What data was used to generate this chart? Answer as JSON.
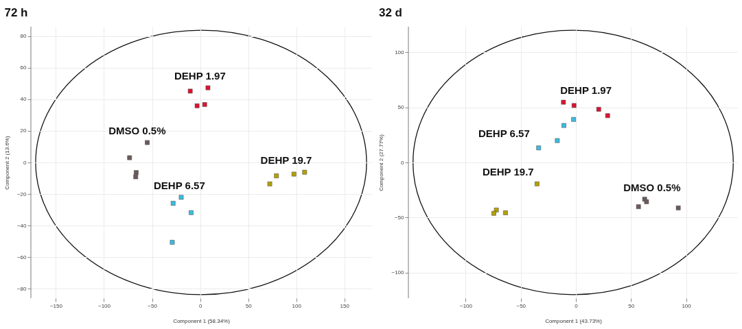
{
  "chart_data": [
    {
      "type": "scatter",
      "title": "72 h",
      "xlabel": "Component 1 (58.34%)",
      "ylabel": "Component 2 (13.6%)",
      "xlim": [
        -176,
        178
      ],
      "ylim": [
        -86,
        86
      ],
      "xticks": [
        -150,
        -100,
        -50,
        0,
        50,
        100,
        150
      ],
      "yticks": [
        -80,
        -60,
        -40,
        -20,
        0,
        20,
        40,
        60,
        80
      ],
      "grid": true,
      "marker": "square",
      "series": [
        {
          "name": "DEHP 1.97",
          "color": "#e0102f",
          "x": [
            -10.3,
            8.1,
            -3.2,
            4.7
          ],
          "values": [
            45.2,
            47.3,
            35.9,
            36.7
          ]
        },
        {
          "name": "DMSO 0.5%",
          "color": "#6b5a5a",
          "x": [
            -55,
            -73.4,
            -66.5,
            -67
          ],
          "values": [
            12.6,
            3.0,
            -6.4,
            -9.1
          ]
        },
        {
          "name": "DEHP 6.57",
          "color": "#3bbde0",
          "x": [
            -19.7,
            -28.1,
            -9.4,
            -29
          ],
          "values": [
            -22.1,
            -25.9,
            -31.8,
            -50.6
          ]
        },
        {
          "name": "DEHP 19.7",
          "color": "#b5a000",
          "x": [
            72.4,
            79.3,
            97.5,
            108.6
          ],
          "values": [
            -13.6,
            -8.5,
            -7.4,
            -6.2
          ]
        }
      ]
    },
    {
      "type": "scatter",
      "title": "32 d",
      "xlabel": "Component 1 (43.73%)",
      "ylabel": "Component 2 (27.77%)",
      "xlim": [
        -152,
        147
      ],
      "ylim": [
        -123,
        123
      ],
      "xticks": [
        -100,
        -50,
        0,
        50,
        100
      ],
      "yticks": [
        -100,
        -50,
        0,
        50,
        100
      ],
      "grid": true,
      "marker": "square",
      "series": [
        {
          "name": "DEHP 1.97",
          "color": "#e0102f",
          "x": [
            -11.3,
            -1.7,
            20.7,
            28.8
          ],
          "values": [
            54.6,
            51.6,
            48.2,
            42.4
          ]
        },
        {
          "name": "DEHP 6.57",
          "color": "#3bbde0",
          "x": [
            -2.1,
            -10.9,
            -16.9,
            -33.8
          ],
          "values": [
            39.0,
            33.5,
            19.8,
            13.2
          ]
        },
        {
          "name": "DEHP 19.7",
          "color": "#b5a000",
          "x": [
            -35.3,
            -72.2,
            -74.5,
            -63.9
          ],
          "values": [
            -19.4,
            -43.1,
            -46.1,
            -45.6
          ]
        },
        {
          "name": "DMSO 0.5%",
          "color": "#6b5a5a",
          "x": [
            62.4,
            64.1,
            56.8,
            92.9
          ],
          "values": [
            -33.3,
            -35.6,
            -40.1,
            -41.2
          ]
        }
      ]
    }
  ]
}
